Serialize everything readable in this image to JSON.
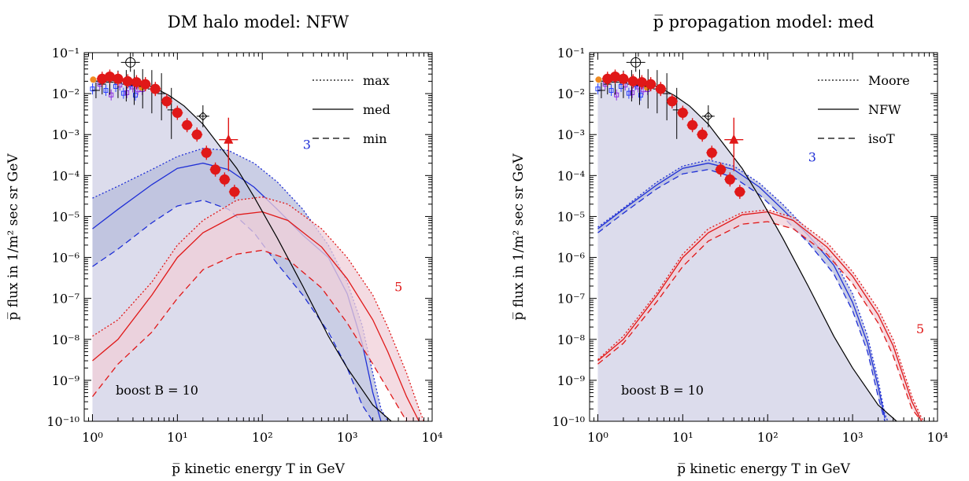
{
  "chart_data": [
    {
      "type": "line",
      "title": "DM halo model: NFW",
      "xlabel": "p̅ kinetic energy T in GeV",
      "ylabel": "p̅ flux in 1/m² sec sr GeV",
      "xscale": "log",
      "yscale": "log",
      "xlim": [
        0.8,
        10000
      ],
      "ylim": [
        1e-10,
        0.1
      ],
      "xticks": [
        "10⁰",
        "10¹",
        "10²",
        "10³",
        "10⁴"
      ],
      "yticks": [
        "10⁻¹⁰",
        "10⁻⁹",
        "10⁻⁸",
        "10⁻⁷",
        "10⁻⁶",
        "10⁻⁵",
        "10⁻⁴",
        "10⁻³",
        "10⁻²",
        "10⁻¹"
      ],
      "annotation": "boost B = 10",
      "legend": {
        "position": "top-right",
        "entries": [
          {
            "label": "max",
            "dash": "dotted"
          },
          {
            "label": "med",
            "dash": "solid"
          },
          {
            "label": "min",
            "dash": "dashed"
          }
        ]
      },
      "colors": {
        "background": "#000000",
        "blue": "#1f2fd6",
        "red": "#e01818",
        "band_bg": "#dcdcec",
        "band_blue": "#b8bedc",
        "band_red": "#f0cfd8"
      },
      "background": {
        "x": [
          1,
          2,
          3,
          5,
          8,
          12,
          20,
          30,
          50,
          80,
          150,
          300,
          600,
          1000,
          2000,
          3300
        ],
        "y": [
          0.02,
          0.021,
          0.019,
          0.015,
          0.009,
          0.005,
          0.0018,
          0.0006,
          0.00015,
          3e-05,
          3e-06,
          2e-07,
          1.2e-08,
          2e-09,
          2.5e-10,
          1e-10
        ]
      },
      "series": [
        {
          "label": "3",
          "color": "blue",
          "x": [
            1,
            2,
            5,
            10,
            20,
            40,
            80,
            150,
            300,
            600,
            1000,
            1500,
            2000,
            2500,
            3000
          ],
          "max": [
            2.8e-05,
            5.5e-05,
            0.00014,
            0.00029,
            0.00046,
            0.00041,
            0.0002,
            7e-05,
            1.5e-05,
            2e-06,
            2.5e-07,
            2.2e-08,
            1.5e-09,
            2e-10,
            1e-10
          ],
          "med": [
            5e-06,
            1.5e-05,
            6e-05,
            0.00015,
            0.0002,
            0.00014,
            5.2e-05,
            1.5e-05,
            3.5e-06,
            1e-06,
            1.3e-07,
            8e-09,
            5e-10,
            1e-10,
            null
          ],
          "min": [
            6e-07,
            1.6e-06,
            7e-06,
            1.8e-05,
            2.5e-05,
            1.5e-05,
            4e-06,
            7e-07,
            1.2e-07,
            1.5e-08,
            2e-09,
            2.5e-10,
            1e-10,
            null,
            null
          ]
        },
        {
          "label": "5",
          "color": "red",
          "x": [
            1,
            2,
            5,
            10,
            20,
            50,
            100,
            200,
            500,
            1000,
            2000,
            3000,
            5000,
            7000,
            8000
          ],
          "max": [
            1.2e-08,
            3e-08,
            2.5e-07,
            2e-06,
            8e-06,
            2.5e-05,
            3e-05,
            2e-05,
            5e-06,
            1e-06,
            1.2e-07,
            2e-08,
            1.5e-09,
            2e-10,
            1e-10
          ],
          "med": [
            3e-09,
            1e-08,
            1.2e-07,
            1e-06,
            4e-06,
            1.1e-05,
            1.3e-05,
            8e-06,
            1.8e-06,
            3e-07,
            3e-08,
            5e-09,
            4e-10,
            1e-10,
            null
          ],
          "min": [
            4e-10,
            2.5e-09,
            1.5e-08,
            1e-07,
            5e-07,
            1.2e-06,
            1.5e-06,
            9e-07,
            1.8e-07,
            2.5e-08,
            2.5e-09,
            6e-10,
            1e-10,
            null,
            null
          ]
        }
      ],
      "series_labels": [
        {
          "text": "3",
          "color": "blue",
          "x": 300,
          "y": 0.00045
        },
        {
          "text": "5",
          "color": "red",
          "x": 3600,
          "y": 1.5e-07
        }
      ]
    },
    {
      "type": "line",
      "title": "p̅ propagation model: med",
      "xlabel": "p̅ kinetic energy T in GeV",
      "ylabel": "p̅ flux in 1/m² sec sr GeV",
      "xscale": "log",
      "yscale": "log",
      "xlim": [
        0.8,
        10000
      ],
      "ylim": [
        1e-10,
        0.1
      ],
      "xticks": [
        "10⁰",
        "10¹",
        "10²",
        "10³",
        "10⁴"
      ],
      "yticks": [
        "10⁻¹⁰",
        "10⁻⁹",
        "10⁻⁸",
        "10⁻⁷",
        "10⁻⁶",
        "10⁻⁵",
        "10⁻⁴",
        "10⁻³",
        "10⁻²",
        "10⁻¹"
      ],
      "annotation": "boost B = 10",
      "legend": {
        "position": "top-right",
        "entries": [
          {
            "label": "Moore",
            "dash": "dotted"
          },
          {
            "label": "NFW",
            "dash": "solid"
          },
          {
            "label": "isoT",
            "dash": "dashed"
          }
        ]
      },
      "colors": {
        "background": "#000000",
        "blue": "#1f2fd6",
        "red": "#e01818",
        "band_bg": "#dcdcec",
        "band_blue": "#b8bedc",
        "band_red": "#f0cfd8"
      },
      "background": {
        "x": [
          1,
          2,
          3,
          5,
          8,
          12,
          20,
          30,
          50,
          80,
          150,
          300,
          600,
          1000,
          2000,
          3300
        ],
        "y": [
          0.02,
          0.021,
          0.019,
          0.015,
          0.009,
          0.005,
          0.0018,
          0.0006,
          0.00015,
          3e-05,
          3e-06,
          2e-07,
          1.2e-08,
          2e-09,
          2.5e-10,
          1e-10
        ]
      },
      "series": [
        {
          "label": "3",
          "color": "blue",
          "x": [
            1,
            2,
            5,
            10,
            20,
            40,
            80,
            150,
            300,
            600,
            1000,
            1500,
            2000,
            2400,
            2600
          ],
          "max": [
            5.5e-06,
            1.6e-05,
            7e-05,
            0.00017,
            0.00024,
            0.00017,
            6.5e-05,
            2e-05,
            4.5e-06,
            9e-07,
            1.3e-07,
            1.2e-08,
            1e-09,
            1.5e-10,
            1e-10
          ],
          "med": [
            5e-06,
            1.5e-05,
            6e-05,
            0.00015,
            0.0002,
            0.00014,
            5.2e-05,
            1.5e-05,
            3.5e-06,
            6.5e-07,
            8e-08,
            8e-09,
            7e-10,
            1.2e-10,
            null
          ],
          "min": [
            4e-06,
            1.2e-05,
            4.8e-05,
            0.00011,
            0.00014,
            9e-05,
            3.4e-05,
            1e-05,
            2.3e-06,
            4e-07,
            5e-08,
            5e-09,
            4e-10,
            1e-10,
            null
          ]
        },
        {
          "label": "5",
          "color": "red",
          "x": [
            1,
            2,
            5,
            10,
            20,
            50,
            100,
            200,
            500,
            1000,
            2000,
            3000,
            5000,
            6500,
            7000
          ],
          "max": [
            3.2e-09,
            1.2e-08,
            1.4e-07,
            1.2e-06,
            5e-06,
            1.25e-05,
            1.45e-05,
            9.5e-06,
            2.3e-06,
            4.5e-07,
            5.5e-08,
            1e-08,
            4e-10,
            1.2e-10,
            1e-10
          ],
          "med": [
            3e-09,
            1e-08,
            1.2e-07,
            1e-06,
            4e-06,
            1.1e-05,
            1.3e-05,
            8e-06,
            1.8e-06,
            3.5e-07,
            4e-08,
            7e-09,
            3e-10,
            1e-10,
            null
          ],
          "min": [
            2.5e-09,
            8e-09,
            8.5e-08,
            6e-07,
            2.5e-06,
            6.5e-06,
            7.5e-06,
            5e-06,
            1.2e-06,
            2.3e-07,
            2.5e-08,
            4e-09,
            2e-10,
            1e-10,
            null
          ]
        }
      ],
      "series_labels": [
        {
          "text": "3",
          "color": "blue",
          "x": 300,
          "y": 0.00022
        },
        {
          "text": "5",
          "color": "red",
          "x": 5600,
          "y": 1.4e-08
        }
      ]
    }
  ],
  "data_points": {
    "red_circles": {
      "x": [
        1.3,
        1.6,
        2,
        2.6,
        3.3,
        4.2,
        5.5,
        7.5,
        10,
        13,
        17,
        22,
        28,
        36,
        47
      ],
      "y": [
        0.023,
        0.026,
        0.023,
        0.02,
        0.019,
        0.017,
        0.013,
        0.0065,
        0.0034,
        0.0017,
        0.001,
        0.00036,
        0.00014,
        8e-05,
        4e-05
      ]
    },
    "red_triangle": {
      "x": 40,
      "y": 0.00075
    },
    "black_crosses": {
      "x": [
        1.1,
        1.3,
        1.6,
        2,
        2.5,
        3.1,
        3.9,
        5,
        6.5,
        8.5
      ],
      "y": [
        0.012,
        0.017,
        0.019,
        0.018,
        0.017,
        0.016,
        0.015,
        0.013,
        0.01,
        0.004
      ]
    },
    "open_marker": {
      "x": 2.8,
      "y": 0.058
    },
    "black_diamond": {
      "x": 20,
      "y": 0.0028
    }
  }
}
